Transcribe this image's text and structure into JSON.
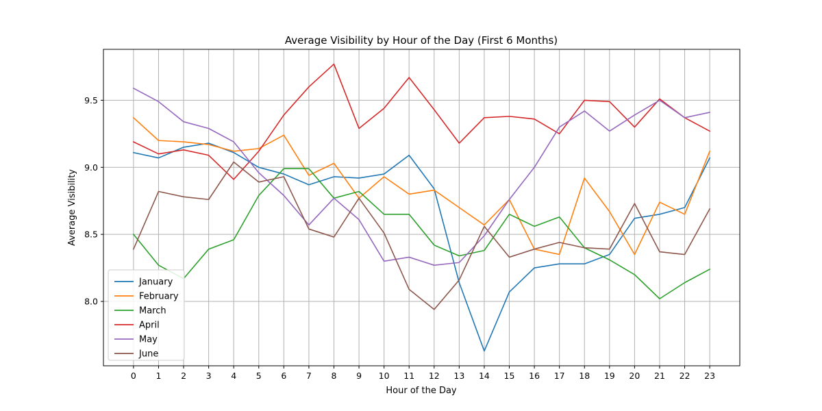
{
  "chart_data": {
    "type": "line",
    "title": "Average Visibility by Hour of the Day (First 6 Months)",
    "xlabel": "Hour of the Day",
    "ylabel": "Average Visibility",
    "x": [
      0,
      1,
      2,
      3,
      4,
      5,
      6,
      7,
      8,
      9,
      10,
      11,
      12,
      13,
      14,
      15,
      16,
      17,
      18,
      19,
      20,
      21,
      22,
      23
    ],
    "x_tick_labels": [
      "0",
      "1",
      "2",
      "3",
      "4",
      "5",
      "6",
      "7",
      "8",
      "9",
      "10",
      "11",
      "12",
      "13",
      "14",
      "15",
      "16",
      "17",
      "18",
      "19",
      "20",
      "21",
      "22",
      "23"
    ],
    "y_ticks": [
      8.0,
      8.5,
      9.0,
      9.5
    ],
    "y_tick_labels": [
      "8.0",
      "8.5",
      "9.0",
      "9.5"
    ],
    "xlim": [
      -1.2,
      24.2
    ],
    "ylim": [
      7.52,
      9.88
    ],
    "grid": true,
    "legend_position": "lower-left",
    "series": [
      {
        "name": "January",
        "color": "#1f77b4",
        "values": [
          9.11,
          9.07,
          9.15,
          9.18,
          9.11,
          9.0,
          8.95,
          8.87,
          8.93,
          8.92,
          8.95,
          9.09,
          8.84,
          8.14,
          7.63,
          8.07,
          8.25,
          8.28,
          8.28,
          8.35,
          8.62,
          8.65,
          8.7,
          9.07
        ]
      },
      {
        "name": "February",
        "color": "#ff7f0e",
        "values": [
          9.37,
          9.2,
          9.19,
          9.17,
          9.12,
          9.14,
          9.24,
          8.94,
          9.03,
          8.77,
          8.93,
          8.8,
          8.83,
          8.7,
          8.57,
          8.76,
          8.39,
          8.35,
          8.92,
          8.67,
          8.35,
          8.74,
          8.65,
          9.12
        ]
      },
      {
        "name": "March",
        "color": "#2ca02c",
        "values": [
          8.5,
          8.27,
          8.17,
          8.39,
          8.46,
          8.79,
          8.99,
          8.99,
          8.77,
          8.82,
          8.65,
          8.65,
          8.42,
          8.34,
          8.38,
          8.65,
          8.56,
          8.63,
          8.4,
          8.31,
          8.2,
          8.02,
          8.14,
          8.24
        ]
      },
      {
        "name": "April",
        "color": "#d62728",
        "values": [
          9.19,
          9.1,
          9.13,
          9.09,
          8.91,
          9.12,
          9.39,
          9.6,
          9.77,
          9.29,
          9.44,
          9.67,
          9.43,
          9.18,
          9.37,
          9.38,
          9.36,
          9.25,
          9.5,
          9.49,
          9.3,
          9.51,
          9.37,
          9.27
        ]
      },
      {
        "name": "May",
        "color": "#9467bd",
        "values": [
          9.59,
          9.49,
          9.34,
          9.29,
          9.19,
          8.96,
          8.79,
          8.57,
          8.77,
          8.61,
          8.3,
          8.33,
          8.27,
          8.29,
          8.49,
          8.76,
          9.0,
          9.3,
          9.42,
          9.27,
          9.39,
          9.5,
          9.37,
          9.41
        ]
      },
      {
        "name": "June",
        "color": "#8c564b",
        "values": [
          8.39,
          8.82,
          8.78,
          8.76,
          9.04,
          8.89,
          8.93,
          8.54,
          8.48,
          8.77,
          8.51,
          8.09,
          7.94,
          8.16,
          8.56,
          8.33,
          8.39,
          8.44,
          8.4,
          8.39,
          8.73,
          8.37,
          8.35,
          8.69
        ]
      }
    ]
  }
}
